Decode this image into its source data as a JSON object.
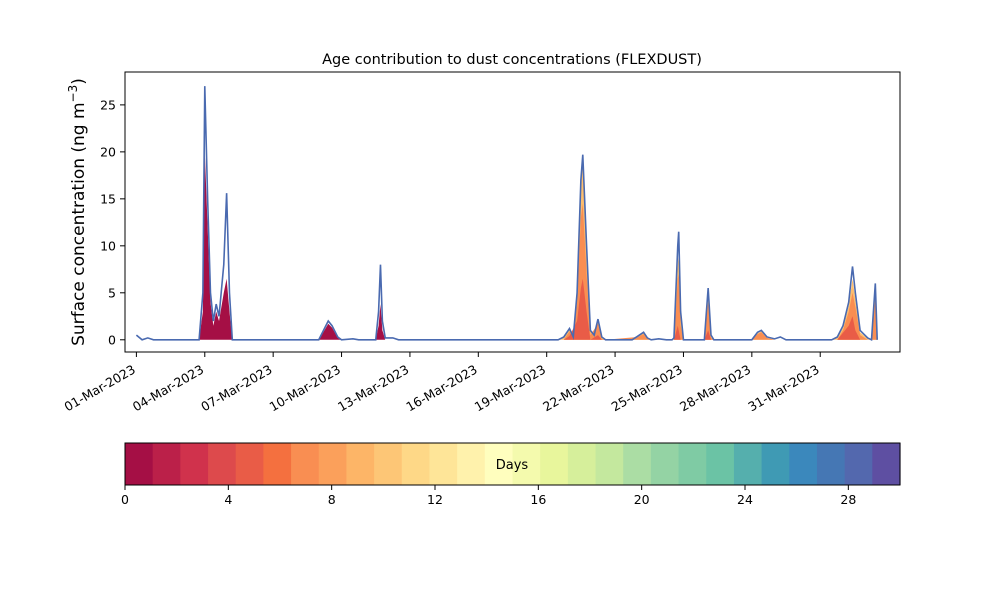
{
  "chart_data": {
    "type": "area",
    "title": "Age contribution to dust concentrations (FLEXDUST)",
    "ylabel": "Surface concentration (ng m",
    "ylabel_sup": "−3",
    "ylabel_close": ")",
    "xlabel": "",
    "ylim": [
      -1.3,
      28.5
    ],
    "xlim": [
      "2023-02-28 12:00",
      "2023-04-03 12:00"
    ],
    "grid": false,
    "yticks": [
      0,
      5,
      10,
      15,
      20,
      25
    ],
    "xtick_labels": [
      "01-Mar-2023",
      "04-Mar-2023",
      "07-Mar-2023",
      "10-Mar-2023",
      "13-Mar-2023",
      "16-Mar-2023",
      "19-Mar-2023",
      "22-Mar-2023",
      "25-Mar-2023",
      "28-Mar-2023",
      "31-Mar-2023"
    ],
    "xtick_dates": [
      "2023-03-01",
      "2023-03-04",
      "2023-03-07",
      "2023-03-10",
      "2023-03-13",
      "2023-03-16",
      "2023-03-19",
      "2023-03-22",
      "2023-03-25",
      "2023-03-28",
      "2023-03-31"
    ],
    "total_line_color": "#4a6ab0",
    "total": [
      [
        "2023-03-01 00:00",
        0.5
      ],
      [
        "2023-03-01 06:00",
        0.0
      ],
      [
        "2023-03-01 12:00",
        0.2
      ],
      [
        "2023-03-01 18:00",
        0.0
      ],
      [
        "2023-03-03 18:00",
        0.0
      ],
      [
        "2023-03-03 22:00",
        5.0
      ],
      [
        "2023-03-04 00:00",
        27.0
      ],
      [
        "2023-03-04 03:00",
        15.0
      ],
      [
        "2023-03-04 06:00",
        5.0
      ],
      [
        "2023-03-04 09:00",
        2.0
      ],
      [
        "2023-03-04 12:00",
        3.8
      ],
      [
        "2023-03-04 15:00",
        2.5
      ],
      [
        "2023-03-04 20:00",
        8.0
      ],
      [
        "2023-03-04 23:00",
        15.6
      ],
      [
        "2023-03-05 02:00",
        5.0
      ],
      [
        "2023-03-05 05:00",
        0.0
      ],
      [
        "2023-03-07 12:00",
        0.0
      ],
      [
        "2023-03-09 00:00",
        0.0
      ],
      [
        "2023-03-09 06:00",
        1.2
      ],
      [
        "2023-03-09 10:00",
        2.0
      ],
      [
        "2023-03-09 14:00",
        1.5
      ],
      [
        "2023-03-09 20:00",
        0.3
      ],
      [
        "2023-03-10 00:00",
        0.0
      ],
      [
        "2023-03-10 12:00",
        0.1
      ],
      [
        "2023-03-10 18:00",
        0.0
      ],
      [
        "2023-03-11 12:00",
        0.0
      ],
      [
        "2023-03-11 15:00",
        3.0
      ],
      [
        "2023-03-11 17:00",
        8.0
      ],
      [
        "2023-03-11 19:00",
        2.0
      ],
      [
        "2023-03-11 22:00",
        0.2
      ],
      [
        "2023-03-12 06:00",
        0.2
      ],
      [
        "2023-03-12 12:00",
        0.0
      ],
      [
        "2023-03-19 12:00",
        0.0
      ],
      [
        "2023-03-19 18:00",
        0.3
      ],
      [
        "2023-03-20 00:00",
        1.2
      ],
      [
        "2023-03-20 04:00",
        0.3
      ],
      [
        "2023-03-20 08:00",
        5.0
      ],
      [
        "2023-03-20 12:00",
        17.0
      ],
      [
        "2023-03-20 14:00",
        19.7
      ],
      [
        "2023-03-20 18:00",
        10.0
      ],
      [
        "2023-03-20 22:00",
        1.0
      ],
      [
        "2023-03-21 02:00",
        0.5
      ],
      [
        "2023-03-21 06:00",
        2.2
      ],
      [
        "2023-03-21 10:00",
        0.3
      ],
      [
        "2023-03-21 14:00",
        0.0
      ],
      [
        "2023-03-22 18:00",
        0.0
      ],
      [
        "2023-03-23 00:00",
        0.4
      ],
      [
        "2023-03-23 06:00",
        0.8
      ],
      [
        "2023-03-23 10:00",
        0.2
      ],
      [
        "2023-03-23 14:00",
        0.0
      ],
      [
        "2023-03-23 22:00",
        0.1
      ],
      [
        "2023-03-24 06:00",
        0.0
      ],
      [
        "2023-03-24 12:00",
        0.0
      ],
      [
        "2023-03-24 14:00",
        0.2
      ],
      [
        "2023-03-24 18:00",
        10.0
      ],
      [
        "2023-03-24 19:00",
        11.5
      ],
      [
        "2023-03-24 21:00",
        3.0
      ],
      [
        "2023-03-25 00:00",
        0.0
      ],
      [
        "2023-03-25 22:00",
        0.0
      ],
      [
        "2023-03-26 02:00",
        5.5
      ],
      [
        "2023-03-26 05:00",
        0.5
      ],
      [
        "2023-03-26 08:00",
        0.0
      ],
      [
        "2023-03-28 00:00",
        0.0
      ],
      [
        "2023-03-28 06:00",
        0.8
      ],
      [
        "2023-03-28 10:00",
        1.0
      ],
      [
        "2023-03-28 16:00",
        0.3
      ],
      [
        "2023-03-29 00:00",
        0.1
      ],
      [
        "2023-03-29 06:00",
        0.3
      ],
      [
        "2023-03-29 12:00",
        0.0
      ],
      [
        "2023-03-31 12:00",
        0.0
      ],
      [
        "2023-03-31 18:00",
        0.3
      ],
      [
        "2023-04-01 00:00",
        1.5
      ],
      [
        "2023-04-01 06:00",
        4.0
      ],
      [
        "2023-04-01 10:00",
        7.8
      ],
      [
        "2023-04-01 13:00",
        5.0
      ],
      [
        "2023-04-01 18:00",
        1.0
      ],
      [
        "2023-04-02 02:00",
        0.2
      ],
      [
        "2023-04-02 06:00",
        0.0
      ],
      [
        "2023-04-02 10:00",
        6.0
      ],
      [
        "2023-04-02 12:00",
        0.0
      ]
    ],
    "bands": [
      {
        "color": "#a50f45",
        "points": [
          [
            "2023-03-03 18:00",
            0.0
          ],
          [
            "2023-03-03 22:00",
            3.0
          ],
          [
            "2023-03-04 00:00",
            20.0
          ],
          [
            "2023-03-04 03:00",
            12.0
          ],
          [
            "2023-03-04 06:00",
            4.0
          ],
          [
            "2023-03-04 09:00",
            1.5
          ],
          [
            "2023-03-04 12:00",
            3.0
          ],
          [
            "2023-03-04 15:00",
            2.0
          ],
          [
            "2023-03-04 20:00",
            5.0
          ],
          [
            "2023-03-04 23:00",
            6.5
          ],
          [
            "2023-03-05 02:00",
            3.0
          ],
          [
            "2023-03-05 05:00",
            0.0
          ],
          [
            "2023-03-09 00:00",
            0.0
          ],
          [
            "2023-03-09 06:00",
            1.0
          ],
          [
            "2023-03-09 10:00",
            1.7
          ],
          [
            "2023-03-09 14:00",
            1.3
          ],
          [
            "2023-03-09 20:00",
            0.2
          ],
          [
            "2023-03-10 00:00",
            0.0
          ],
          [
            "2023-03-11 12:00",
            0.0
          ],
          [
            "2023-03-11 15:00",
            1.5
          ],
          [
            "2023-03-11 17:00",
            3.8
          ],
          [
            "2023-03-11 19:00",
            1.0
          ],
          [
            "2023-03-11 22:00",
            0.0
          ]
        ]
      },
      {
        "color": "#e95c47",
        "points": [
          [
            "2023-03-19 18:00",
            0.0
          ],
          [
            "2023-03-20 00:00",
            0.4
          ],
          [
            "2023-03-20 08:00",
            2.0
          ],
          [
            "2023-03-20 12:00",
            5.5
          ],
          [
            "2023-03-20 14:00",
            6.5
          ],
          [
            "2023-03-20 18:00",
            3.0
          ],
          [
            "2023-03-20 22:00",
            0.0
          ],
          [
            "2023-03-21 06:00",
            0.5
          ],
          [
            "2023-03-21 10:00",
            0.0
          ],
          [
            "2023-03-24 14:00",
            0.0
          ],
          [
            "2023-03-24 18:00",
            1.5
          ],
          [
            "2023-03-24 21:00",
            0.0
          ],
          [
            "2023-03-25 22:00",
            0.0
          ],
          [
            "2023-03-26 02:00",
            1.0
          ],
          [
            "2023-03-26 05:00",
            0.0
          ],
          [
            "2023-03-31 18:00",
            0.0
          ],
          [
            "2023-04-01 06:00",
            1.5
          ],
          [
            "2023-04-01 10:00",
            2.5
          ],
          [
            "2023-04-01 13:00",
            1.0
          ],
          [
            "2023-04-01 18:00",
            0.0
          ]
        ]
      },
      {
        "color": "#f98e52",
        "points": [
          [
            "2023-03-19 18:00",
            0.0
          ],
          [
            "2023-03-20 00:00",
            0.9
          ],
          [
            "2023-03-20 04:00",
            0.2
          ],
          [
            "2023-03-20 08:00",
            4.0
          ],
          [
            "2023-03-20 12:00",
            13.0
          ],
          [
            "2023-03-20 14:00",
            14.5
          ],
          [
            "2023-03-20 18:00",
            7.0
          ],
          [
            "2023-03-20 22:00",
            0.5
          ],
          [
            "2023-03-21 06:00",
            1.7
          ],
          [
            "2023-03-21 10:00",
            0.1
          ],
          [
            "2023-03-21 14:00",
            0.0
          ],
          [
            "2023-03-23 00:00",
            0.3
          ],
          [
            "2023-03-23 06:00",
            0.6
          ],
          [
            "2023-03-23 10:00",
            0.1
          ],
          [
            "2023-03-23 14:00",
            0.0
          ],
          [
            "2023-03-24 14:00",
            0.0
          ],
          [
            "2023-03-24 18:00",
            6.5
          ],
          [
            "2023-03-24 19:00",
            7.0
          ],
          [
            "2023-03-24 21:00",
            1.5
          ],
          [
            "2023-03-25 00:00",
            0.0
          ],
          [
            "2023-03-25 22:00",
            0.0
          ],
          [
            "2023-03-26 02:00",
            4.0
          ],
          [
            "2023-03-26 05:00",
            0.2
          ],
          [
            "2023-03-26 08:00",
            0.0
          ],
          [
            "2023-03-28 00:00",
            0.0
          ],
          [
            "2023-03-28 06:00",
            0.6
          ],
          [
            "2023-03-28 10:00",
            0.8
          ],
          [
            "2023-03-28 16:00",
            0.2
          ],
          [
            "2023-03-29 00:00",
            0.0
          ],
          [
            "2023-03-31 18:00",
            0.0
          ],
          [
            "2023-04-01 00:00",
            1.0
          ],
          [
            "2023-04-01 06:00",
            3.0
          ],
          [
            "2023-04-01 10:00",
            5.0
          ],
          [
            "2023-04-01 13:00",
            3.5
          ],
          [
            "2023-04-01 18:00",
            0.5
          ],
          [
            "2023-04-02 02:00",
            0.0
          ],
          [
            "2023-04-02 06:00",
            0.0
          ],
          [
            "2023-04-02 10:00",
            4.5
          ],
          [
            "2023-04-02 12:00",
            0.0
          ]
        ]
      },
      {
        "color": "#fdbe6e",
        "points": [
          [
            "2023-03-19 12:00",
            0.0
          ],
          [
            "2023-03-19 18:00",
            0.2
          ],
          [
            "2023-03-20 00:00",
            1.1
          ],
          [
            "2023-03-20 04:00",
            0.3
          ],
          [
            "2023-03-20 08:00",
            4.8
          ],
          [
            "2023-03-20 12:00",
            16.5
          ],
          [
            "2023-03-20 14:00",
            19.0
          ],
          [
            "2023-03-20 18:00",
            9.5
          ],
          [
            "2023-03-20 22:00",
            0.9
          ],
          [
            "2023-03-21 02:00",
            0.4
          ],
          [
            "2023-03-21 06:00",
            2.1
          ],
          [
            "2023-03-21 10:00",
            0.2
          ],
          [
            "2023-03-21 14:00",
            0.0
          ],
          [
            "2023-03-22 18:00",
            0.0
          ],
          [
            "2023-03-23 00:00",
            0.4
          ],
          [
            "2023-03-23 06:00",
            0.7
          ],
          [
            "2023-03-23 10:00",
            0.2
          ],
          [
            "2023-03-23 14:00",
            0.0
          ],
          [
            "2023-03-24 12:00",
            0.0
          ],
          [
            "2023-03-24 14:00",
            0.1
          ],
          [
            "2023-03-24 18:00",
            8.0
          ],
          [
            "2023-03-24 19:00",
            9.0
          ],
          [
            "2023-03-24 21:00",
            2.5
          ],
          [
            "2023-03-25 00:00",
            0.0
          ],
          [
            "2023-03-25 22:00",
            0.0
          ],
          [
            "2023-03-26 02:00",
            4.5
          ],
          [
            "2023-03-26 05:00",
            0.3
          ],
          [
            "2023-03-26 08:00",
            0.0
          ],
          [
            "2023-03-28 00:00",
            0.0
          ],
          [
            "2023-03-28 06:00",
            0.7
          ],
          [
            "2023-03-28 10:00",
            0.9
          ],
          [
            "2023-03-28 16:00",
            0.2
          ],
          [
            "2023-03-29 00:00",
            0.0
          ],
          [
            "2023-03-31 12:00",
            0.0
          ],
          [
            "2023-03-31 18:00",
            0.2
          ],
          [
            "2023-04-01 00:00",
            1.3
          ],
          [
            "2023-04-01 06:00",
            3.6
          ],
          [
            "2023-04-01 10:00",
            6.5
          ],
          [
            "2023-04-01 13:00",
            4.3
          ],
          [
            "2023-04-01 18:00",
            0.8
          ],
          [
            "2023-04-02 02:00",
            0.1
          ],
          [
            "2023-04-02 06:00",
            0.0
          ],
          [
            "2023-04-02 10:00",
            5.2
          ],
          [
            "2023-04-02 12:00",
            0.0
          ]
        ]
      }
    ],
    "colorbar": {
      "label": "Days",
      "ticks": [
        0,
        4,
        8,
        12,
        16,
        20,
        24,
        28
      ],
      "range": [
        0,
        30
      ],
      "colors": [
        "#a50f45",
        "#bb2049",
        "#d0324c",
        "#dd4a4c",
        "#e95c47",
        "#f4703f",
        "#f98e52",
        "#fba05b",
        "#fdb567",
        "#fdc676",
        "#fed887",
        "#fee598",
        "#fff2ac",
        "#fffebe",
        "#f4faad",
        "#e8f69c",
        "#d6ef9b",
        "#c4e89e",
        "#abdda4",
        "#94d3a4",
        "#7fcba4",
        "#6bc3a5",
        "#55afad",
        "#3f9ab4",
        "#3b88bc",
        "#4577b4",
        "#5368ae",
        "#5e4fa2"
      ]
    }
  }
}
